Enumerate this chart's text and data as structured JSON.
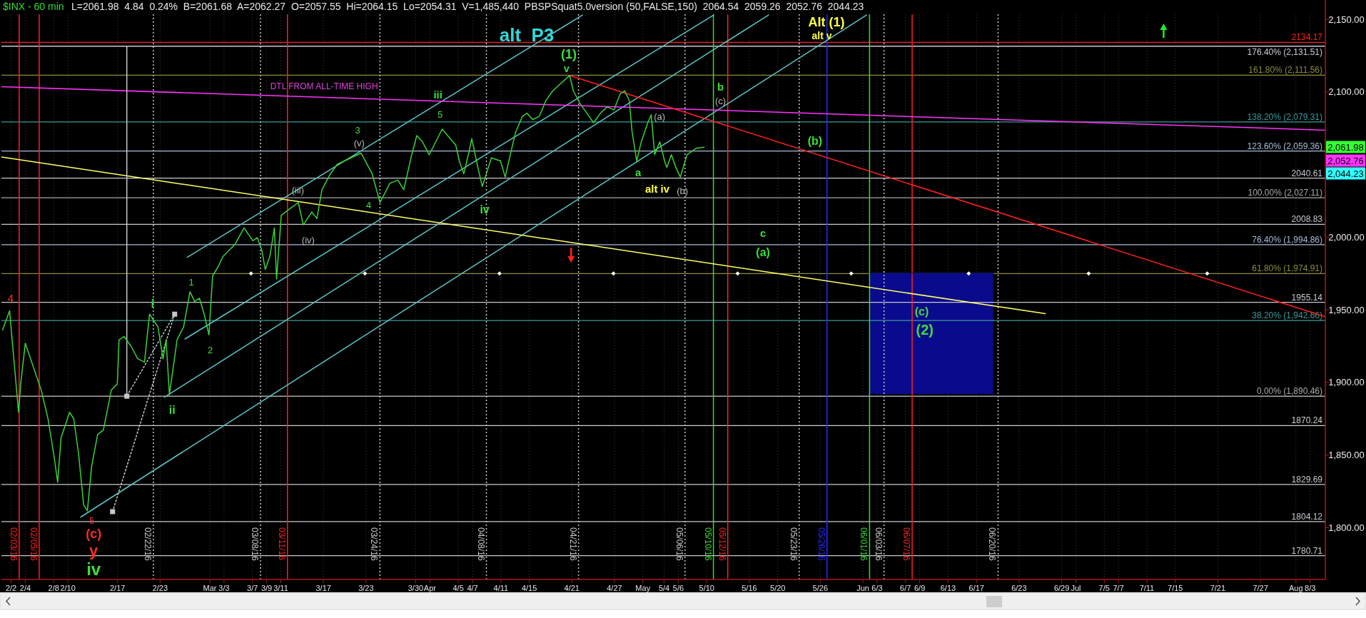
{
  "chart_data": {
    "type": "line",
    "title": "$INX - 60 min",
    "subtitle": "L=2061.98  4.84  0.24%  B=2061.68  A=2062.27  O=2057.55  Hi=2064.15  Lo=2054.31  V=1,485,440  PBSPSquat5.0version (50,FALSE,150)  2064.54  2059.26  2052.76  2044.23",
    "xlim": [
      "--01-31T15:22",
      "--08-05T03:22"
    ],
    "ylim": [
      1764.3,
      2153.5
    ],
    "xticks": [
      {
        "value": "--02-02",
        "label": "2/2"
      },
      {
        "value": "--02-04",
        "label": "2/4"
      },
      {
        "value": "--02-08",
        "label": "2/8"
      },
      {
        "value": "--02-10",
        "label": "2/10"
      },
      {
        "value": "--02-17",
        "label": "2/17"
      },
      {
        "value": "--02-23",
        "label": "2/23"
      },
      {
        "value": "--03-01",
        "label": "Mar"
      },
      {
        "value": "--03-03",
        "label": "3/3"
      },
      {
        "value": "--03-07",
        "label": "3/7"
      },
      {
        "value": "--03-09",
        "label": "3/9"
      },
      {
        "value": "--03-11",
        "label": "3/11"
      },
      {
        "value": "--03-17",
        "label": "3/17"
      },
      {
        "value": "--03-23",
        "label": "3/23"
      },
      {
        "value": "--03-30",
        "label": "3/30"
      },
      {
        "value": "--04-01",
        "label": "Apr"
      },
      {
        "value": "--04-05",
        "label": "4/5"
      },
      {
        "value": "--04-07",
        "label": "4/7"
      },
      {
        "value": "--04-11",
        "label": "4/11"
      },
      {
        "value": "--04-15",
        "label": "4/15"
      },
      {
        "value": "--04-21",
        "label": "4/21"
      },
      {
        "value": "--04-27",
        "label": "4/27"
      },
      {
        "value": "--05-01",
        "label": "May"
      },
      {
        "value": "--05-04",
        "label": "5/4"
      },
      {
        "value": "--05-06",
        "label": "5/6"
      },
      {
        "value": "--05-10",
        "label": "5/10"
      },
      {
        "value": "--05-16",
        "label": "5/16"
      },
      {
        "value": "--05-20",
        "label": "5/20"
      },
      {
        "value": "--05-26",
        "label": "5/26"
      },
      {
        "value": "--06-01",
        "label": "Jun"
      },
      {
        "value": "--06-03",
        "label": "6/3"
      },
      {
        "value": "--06-07",
        "label": "6/7"
      },
      {
        "value": "--06-09",
        "label": "6/9"
      },
      {
        "value": "--06-13",
        "label": "6/13"
      },
      {
        "value": "--06-17",
        "label": "6/17"
      },
      {
        "value": "--06-23",
        "label": "6/23"
      },
      {
        "value": "--06-29",
        "label": "6/29"
      },
      {
        "value": "--07-01",
        "label": "Jul"
      },
      {
        "value": "--07-05",
        "label": "7/5"
      },
      {
        "value": "--07-07",
        "label": "7/7"
      },
      {
        "value": "--07-11",
        "label": "7/11"
      },
      {
        "value": "--07-15",
        "label": "7/15"
      },
      {
        "value": "--07-21",
        "label": "7/21"
      },
      {
        "value": "--07-27",
        "label": "7/27"
      },
      {
        "value": "--08-01",
        "label": "Aug"
      },
      {
        "value": "--08-03",
        "label": "8/3"
      }
    ],
    "yticks": [
      {
        "value": 1800,
        "label": "1,800.00"
      },
      {
        "value": 1850,
        "label": "1,850.00"
      },
      {
        "value": 1900,
        "label": "1,900.00"
      },
      {
        "value": 1950,
        "label": "1,950.00"
      },
      {
        "value": 2000,
        "label": "2,000.00"
      },
      {
        "value": 2050,
        "label": null
      },
      {
        "value": 2100,
        "label": "2,100.00"
      },
      {
        "value": 2150,
        "label": "2,150.00"
      }
    ],
    "grid": "x",
    "marker": "none",
    "line_style": "solid",
    "series": [
      {
        "color": "#0a0a8c",
        "x": [
          "--06-02T00:00",
          "--06-19T08:31"
        ],
        "values": [
          1975,
          1975
        ],
        "lower": [
          1892,
          1892
        ],
        "upper": [
          1975,
          1975
        ]
      },
      {
        "color": "#5cc4c4",
        "x": [
          "--02-26T19:21",
          "--04-22T12:00"
        ],
        "values": [
          1986.1,
          2153
        ]
      },
      {
        "color": "#5cc4c4",
        "x": [
          "--02-26T11:57",
          "--05-10T23:24"
        ],
        "values": [
          1929.9,
          2153
        ]
      },
      {
        "color": "#5cc4c4",
        "x": [
          "--02-23T14:27",
          "--05-18T16:48"
        ],
        "values": [
          1889.8,
          2153
        ]
      },
      {
        "color": "#5cc4c4",
        "x": [
          "--02-11T19:41",
          "--06-01T12:00"
        ],
        "values": [
          1807.3,
          2153
        ]
      },
      {
        "color": "#ffff66",
        "x": [
          "--01-31T15:22",
          "--06-26T16:55"
        ],
        "values": [
          2055.2,
          1947.3
        ]
      },
      {
        "color": "#ff33ff",
        "x": [
          "--01-31T15:22",
          "--08-05T03:22"
        ],
        "values": [
          2103.6,
          2073.7
        ]
      },
      {
        "color": "#ff2020",
        "x": [
          "--04-20T16:26",
          "--08-05T03:22"
        ],
        "values": [
          2111.4,
          1945.2
        ]
      },
      {
        "color": "#c8c8c8",
        "line_style": "dotted",
        "marker": "square",
        "x": [
          "--02-16T07:12",
          "--02-25T01:03",
          "--02-18T07:19"
        ],
        "values": [
          1811,
          1947,
          1890.5
        ]
      },
      {
        "color": "#c8c8c8",
        "x": [
          "--02-18T07:19",
          "--02-18T07:19"
        ],
        "values": [
          1890.5,
          2131.5
        ]
      },
      {
        "color": "#3ccf3c",
        "x": [
          "--01-31T19:12",
          "--02-01T18:58",
          "--02-03T01:12",
          "--02-03T08:38",
          "--02-04T00:00",
          "--02-06T05:46",
          "--02-07T04:48",
          "--02-08T01:41",
          "--02-08T13:26",
          "--02-09T00:58",
          "--02-10T05:53",
          "--02-10T19:44",
          "--02-11T12:07",
          "--02-12T05:20",
          "--02-12T17:56",
          "--02-13T08:13",
          "--02-14T04:23",
          "--02-15T00:07",
          "--02-16T03:00",
          "--02-16T23:10",
          "--02-17T05:02",
          "--02-17T21:58",
          "--02-18T21:22",
          "--02-19T20:02",
          "--02-20T19:05",
          "--02-21T12:00",
          "--02-22T16:26",
          "--02-23T09:45",
          "--02-23T20:10",
          "--02-24T07:15",
          "--02-25T09:27",
          "--02-26T07:18",
          "--02-27T04:48",
          "--02-27T20:36",
          "--02-28T12:43",
          "--02-29T04:51",
          "--02-29T20:59",
          "--03-01T09:22",
          "--03-02T04:34",
          "--03-02T19:41",
          "--03-04T13:55",
          "--03-05T19:41",
          "--03-07T01:26",
          "--03-07T16:34",
          "--03-08T07:55",
          "--03-08T19:26",
          "--03-09T10:34",
          "--03-10T02:10",
          "--03-10T09:36",
          "--03-11T01:26",
          "--03-12T06:14",
          "--03-13T11:02",
          "--03-14T03:58",
          "--03-15T08:46",
          "--03-16T02:02",
          "--03-16T18:58",
          "--03-17T23:46",
          "--03-18T22:48",
          "--03-20T20:31",
          "--03-22T07:26",
          "--03-23T20:35",
          "--03-24T23:28",
          "--03-26T08:38",
          "--03-27T11:31",
          "--03-28T07:41",
          "--03-29T10:34",
          "--03-30T03:50",
          "--03-30T23:02",
          "--03-31T21:50",
          "--04-02T17:17",
          "--04-04T15:22",
          "--04-05T03:22",
          "--04-05T18:43",
          "--04-06T10:05",
          "--04-06T21:36",
          "--04-07T18:14",
          "--04-08T09:07",
          "--04-09T15:50",
          "--04-10T22:34",
          "--04-11T14:38",
          "--04-12T10:19",
          "--04-13T01:41",
          "--04-14T00:43",
          "--04-14T16:05",
          "--04-15T11:10",
          "--04-16T09:50",
          "--04-17T08:31",
          "--04-18T07:34",
          "--04-19T06:58",
          "--04-20T16:26",
          "--04-21T05:02",
          "--04-22T03:43",
          "--04-23T02:46",
          "--04-24T01:26",
          "--04-25T00:50",
          "--04-25T23:31",
          "--04-26T22:34",
          "--04-27T19:12",
          "--04-28T10:14",
          "--04-29T01:55",
          "--04-29T11:50",
          "--04-30T03:12",
          "--04-30T18:34",
          "--05-01T16:34",
          "--05-02T04:26",
          "--05-02T15:58",
          "--05-03T09:14",
          "--05-04T01:26",
          "--05-04T09:07",
          "--05-05T00:29",
          "--05-05T15:22",
          "--05-06T06:43",
          "--05-07T05:17",
          "--05-08T12:00",
          "--05-09T15:22"
        ],
        "values": [
          1936,
          1949.3,
          1879.4,
          1899,
          1927,
          1894.8,
          1875,
          1848.7,
          1831.2,
          1861.8,
          1879.4,
          1875,
          1851,
          1815.7,
          1811.5,
          1842,
          1864,
          1867.3,
          1894.8,
          1899,
          1929.4,
          1931.6,
          1925,
          1916.3,
          1914,
          1947,
          1938.2,
          1916.3,
          1929.4,
          1891.5,
          1929.6,
          1938.2,
          1962.4,
          1955.8,
          1958,
          1947,
          1932.7,
          1973.4,
          1979.9,
          1986.5,
          1995.3,
          2006.4,
          1997.5,
          1999.7,
          1990.9,
          1977.8,
          1986.5,
          2006.3,
          1971.2,
          2015.1,
          2019.5,
          2023.9,
          2008.5,
          2017.3,
          2012.9,
          2032.7,
          2043.7,
          2050.2,
          2054.6,
          2057.9,
          2043.7,
          2023.9,
          2037.1,
          2039.3,
          2032.7,
          2056.8,
          2070,
          2065.6,
          2056.8,
          2074.4,
          2063.4,
          2052.5,
          2043.7,
          2056.8,
          2067.8,
          2048,
          2034.9,
          2054.6,
          2052.5,
          2041.4,
          2059,
          2072.2,
          2083.2,
          2085.4,
          2081,
          2083.2,
          2094.2,
          2100.8,
          2105.2,
          2111.4,
          2100.8,
          2092,
          2085.4,
          2078.8,
          2085.4,
          2089.8,
          2087.6,
          2098.6,
          2100.8,
          2094.2,
          2072.2,
          2052.5,
          2065.6,
          2078.8,
          2084.3,
          2056.8,
          2065.6,
          2052.5,
          2048,
          2056.8,
          2048,
          2041.4,
          2056.8,
          2061.2,
          2062
        ]
      },
      {
        "type": "scatter",
        "color": "#ffffff",
        "marker": "diamond",
        "x": [
          "--03-06T19:12",
          "--03-22T20:24",
          "--04-10T19:12",
          "--04-26T20:24",
          "--05-14T08:24",
          "--05-30T08:24",
          "--06-15T21:36",
          "--07-02T19:12",
          "--07-19T12:00"
        ],
        "values": [
          1975,
          1975,
          1975,
          1975,
          1975,
          1975,
          1975,
          1975,
          1975
        ]
      }
    ],
    "ref_lines": [
      {
        "axis": "y",
        "value": 2134.17,
        "label": "2134.17",
        "color": "#ff2020"
      },
      {
        "axis": "y",
        "value": 2131.51,
        "label": "176.40% (2,131.51)",
        "color": "#c8c8d8"
      },
      {
        "axis": "y",
        "value": 2111.56,
        "label": "161.80% (2,111.56)",
        "color": "#8c8c3c"
      },
      {
        "axis": "y",
        "value": 2079.31,
        "label": "138.20% (2,079.31)",
        "color": "#3a9a9a"
      },
      {
        "axis": "y",
        "value": 2059.36,
        "label": "123.60% (2,059.36)",
        "color": "#a8bcd8"
      },
      {
        "axis": "y",
        "value": 2040.61,
        "label": "2040.61",
        "color": "#c8c8d0"
      },
      {
        "axis": "y",
        "value": 2027.11,
        "label": "100.00% (2,027.11)",
        "color": "#a8a8a8"
      },
      {
        "axis": "y",
        "value": 2008.83,
        "label": "2008.83",
        "color": "#c8c8d0"
      },
      {
        "axis": "y",
        "value": 1994.86,
        "label": "76.40% (1,994.86)",
        "color": "#a8bcd8"
      },
      {
        "axis": "y",
        "value": 1974.91,
        "label": "61.80% (1,974.91)",
        "color": "#8c8c3c"
      },
      {
        "axis": "y",
        "value": 1955.14,
        "label": "1955.14",
        "color": "#c8c8d0"
      },
      {
        "axis": "y",
        "value": 1942.66,
        "label": "38.20% (1,942.66)",
        "color": "#3a9a9a"
      },
      {
        "axis": "y",
        "value": 1890.46,
        "label": "0.00% (1,890.46)",
        "color": "#a8a8a8"
      },
      {
        "axis": "y",
        "value": 1870.24,
        "label": "1870.24",
        "color": "#d0d0d0"
      },
      {
        "axis": "y",
        "value": 1829.69,
        "label": "1829.69",
        "color": "#c8c8d0"
      },
      {
        "axis": "y",
        "value": 1804.12,
        "label": "1804.12",
        "color": "#c8c8d0"
      },
      {
        "axis": "y",
        "value": 1780.71,
        "label": "1780.71",
        "color": "#c8c8d0"
      },
      {
        "axis": "x",
        "value": "--02-03T03:22",
        "label": "02/03/16",
        "color": "#ff2020"
      },
      {
        "axis": "x",
        "value": "--02-05T23:00",
        "label": "02/05/16",
        "color": "#ff2020"
      },
      {
        "axis": "x",
        "value": "--02-22T01:00",
        "label": "02/22/16",
        "color": "#c8c8c8",
        "line_style": "dotted"
      },
      {
        "axis": "x",
        "value": "--03-08T03:22",
        "label": "03/08/16",
        "color": "#c8c8c8",
        "line_style": "dotted"
      },
      {
        "axis": "x",
        "value": "--03-11T22:30",
        "label": "03/11/16",
        "color": "#ff2020"
      },
      {
        "axis": "x",
        "value": "--03-24T23:00",
        "label": "03/24/16",
        "color": "#c8c8c8",
        "line_style": "dotted"
      },
      {
        "axis": "x",
        "value": "--04-08T23:00",
        "label": "04/08/16",
        "color": "#c8c8c8",
        "line_style": "dotted"
      },
      {
        "axis": "x",
        "value": "--04-21T22:30",
        "label": "04/21/16",
        "color": "#c8c8c8",
        "line_style": "dotted"
      },
      {
        "axis": "x",
        "value": "--05-06T22:30",
        "label": "05/06/16",
        "color": "#c8c8c8",
        "line_style": "dotted"
      },
      {
        "axis": "x",
        "value": "--05-10T22:30",
        "label": "05/10/16",
        "color": "#33dd33"
      },
      {
        "axis": "x",
        "value": "--05-12T23:00",
        "label": "05/12/16",
        "color": "#ff2020"
      },
      {
        "axis": "x",
        "value": "--05-23T00:30",
        "label": "05/23/16",
        "color": "#c8c8c8",
        "line_style": "dotted"
      },
      {
        "axis": "x",
        "value": "--05-26T22:30",
        "label": "05/26/16",
        "color": "#2828ff"
      },
      {
        "axis": "x",
        "value": "--06-01T22:30",
        "label": "06/01/16",
        "color": "#33dd33"
      },
      {
        "axis": "x",
        "value": "--06-03T23:30",
        "label": "06/03/16",
        "color": "#c8c8c8",
        "line_style": "dotted"
      },
      {
        "axis": "x",
        "value": "--06-07T22:30",
        "label": "06/07/16",
        "color": "#ff2020"
      },
      {
        "axis": "x",
        "value": "--06-20T01:00",
        "label": "06/20/16",
        "color": "#c8c8c8",
        "line_style": "dotted"
      }
    ],
    "annotations": [
      "alt  P3",
      "(1)",
      "v",
      "Alt (1)",
      "alt v",
      "DTL FROM ALL-TIME HIGH",
      "iii",
      "5",
      "3",
      "(v)",
      "(iii)",
      "(iv)",
      "4",
      "iv",
      "1",
      "i",
      "ii",
      "2",
      "4",
      "5",
      "(c)",
      "y",
      "iv",
      "(a)",
      "a",
      "alt iv",
      "(b)",
      "b",
      "(c)",
      "(b)",
      "c",
      "(a)",
      "(c)",
      "(2)",
      "2,061.98",
      "2,052.76",
      "2,044.23"
    ]
  }
}
